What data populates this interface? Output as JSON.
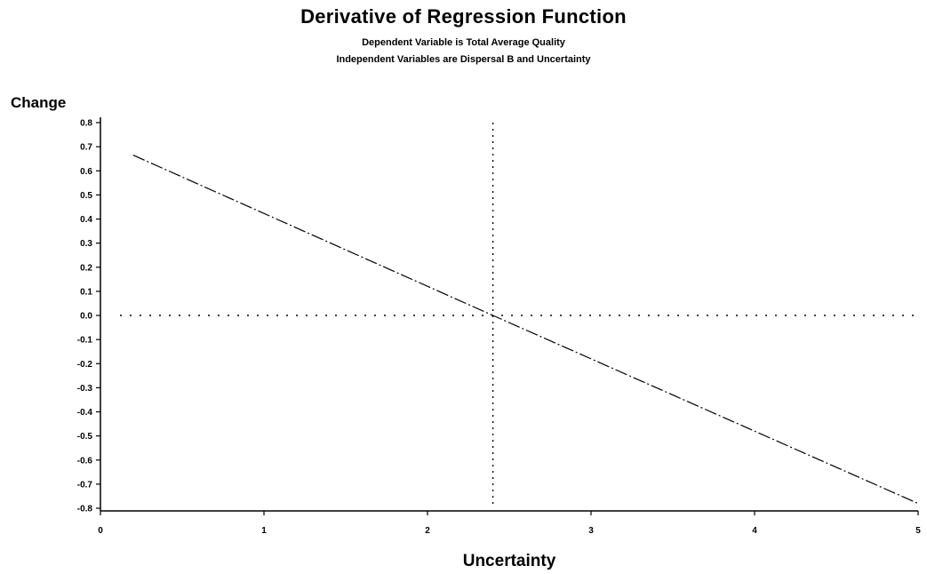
{
  "chart_data": {
    "type": "line",
    "title": "Derivative of Regression Function",
    "subtitles": [
      "Dependent Variable is Total Average Quality",
      "Independent Variables are Dispersal B and Uncertainty"
    ],
    "xlabel": "Uncertainty",
    "ylabel": "Change",
    "xlim": [
      0,
      5
    ],
    "ylim": [
      -0.8,
      0.8
    ],
    "x_ticks": [
      0,
      1,
      2,
      3,
      4,
      5
    ],
    "y_ticks": [
      0.8,
      0.7,
      0.6,
      0.5,
      0.4,
      0.3,
      0.2,
      0.1,
      0.0,
      -0.1,
      -0.2,
      -0.3,
      -0.4,
      -0.5,
      -0.6,
      -0.7,
      -0.8
    ],
    "x_tick_labels": [
      "0",
      "1",
      "2",
      "3",
      "4",
      "5"
    ],
    "y_tick_labels": [
      "0.8",
      "0.7",
      "0.6",
      "0.5",
      "0.4",
      "0.3",
      "0.2",
      "0.1",
      "0.0",
      "-0.1",
      "-0.2",
      "-0.3",
      "-0.4",
      "-0.5",
      "-0.6",
      "-0.7",
      "-0.8"
    ],
    "series": [
      {
        "x": [
          0.2,
          2.4,
          5.0
        ],
        "values": [
          0.665,
          0.0,
          -0.78
        ]
      }
    ],
    "reference_lines": [
      {
        "axis": "y",
        "value": 0.0
      },
      {
        "axis": "x",
        "value": 2.4
      }
    ],
    "grid": false
  }
}
